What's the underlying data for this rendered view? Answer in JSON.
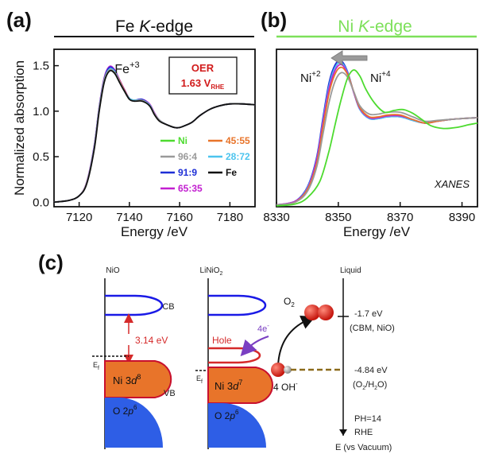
{
  "panels": {
    "a": {
      "label": "(a)",
      "title_pre": "Fe ",
      "title_k": "K",
      "title_post": "-edge",
      "peak_label": "Fe",
      "peak_sup": "+3",
      "box_line1": "OER",
      "box_line2": "1.63 V",
      "box_sub": "RHE"
    },
    "b": {
      "label": "(b)",
      "title_pre": "Ni ",
      "title_k": "K",
      "title_post": "-edge",
      "ann_left": "Ni",
      "ann_left_sup": "+2",
      "ann_right": "Ni",
      "ann_right_sup": "+4",
      "corner": "XANES"
    },
    "c": {
      "label": "(c)"
    }
  },
  "chart_data": [
    {
      "type": "line",
      "title": "Fe K-edge",
      "xlabel": "Energy /eV",
      "ylabel": "Normalized absorption",
      "xlim": [
        7110,
        7190
      ],
      "ylim": [
        -0.05,
        1.68
      ],
      "xticks": [
        7120,
        7140,
        7160,
        7180
      ],
      "yticks": [
        0.0,
        0.5,
        1.0,
        1.5
      ],
      "legend": [
        {
          "name": "Ni",
          "color": "#4ddb2f"
        },
        {
          "name": "45:55",
          "color": "#e8742a"
        },
        {
          "name": "96:4",
          "color": "#9a9a9a"
        },
        {
          "name": "28:72",
          "color": "#4cc4ee"
        },
        {
          "name": "91:9",
          "color": "#1e2fd6"
        },
        {
          "name": "Fe",
          "color": "#111111"
        },
        {
          "name": "65:35",
          "color": "#c21fd0"
        }
      ],
      "series": [
        {
          "name": "65:35",
          "color": "#c21fd0",
          "x": [
            7110,
            7116,
            7120,
            7123,
            7126,
            7128,
            7130,
            7132,
            7134,
            7136,
            7138,
            7140,
            7142,
            7145,
            7148,
            7150,
            7152,
            7155,
            7158,
            7160,
            7162,
            7165,
            7168,
            7172,
            7176,
            7180,
            7185,
            7190
          ],
          "y": [
            0.0,
            0.02,
            0.07,
            0.22,
            0.62,
            1.05,
            1.37,
            1.49,
            1.46,
            1.35,
            1.24,
            1.14,
            1.12,
            1.13,
            1.08,
            0.98,
            0.9,
            0.85,
            0.82,
            0.82,
            0.84,
            0.88,
            0.95,
            1.02,
            1.06,
            1.08,
            1.08,
            1.07
          ]
        },
        {
          "name": "91:9",
          "color": "#1e2fd6",
          "x": [
            7110,
            7116,
            7120,
            7123,
            7126,
            7128,
            7130,
            7132,
            7134,
            7136,
            7138,
            7140,
            7142,
            7145,
            7148,
            7150,
            7152,
            7155,
            7158,
            7160,
            7162,
            7165,
            7168,
            7172,
            7176,
            7180,
            7185,
            7190
          ],
          "y": [
            0.0,
            0.02,
            0.07,
            0.21,
            0.61,
            1.04,
            1.36,
            1.48,
            1.45,
            1.34,
            1.23,
            1.14,
            1.12,
            1.13,
            1.07,
            0.97,
            0.9,
            0.85,
            0.82,
            0.82,
            0.84,
            0.88,
            0.95,
            1.02,
            1.06,
            1.08,
            1.08,
            1.07
          ]
        },
        {
          "name": "45:55",
          "color": "#e8742a",
          "x": [
            7110,
            7116,
            7120,
            7123,
            7126,
            7128,
            7130,
            7132,
            7134,
            7136,
            7138,
            7140,
            7142,
            7145,
            7148,
            7150,
            7152,
            7155,
            7158,
            7160,
            7162,
            7165,
            7168,
            7172,
            7176,
            7180,
            7185,
            7190
          ],
          "y": [
            0.0,
            0.02,
            0.07,
            0.21,
            0.6,
            1.03,
            1.35,
            1.46,
            1.44,
            1.34,
            1.23,
            1.14,
            1.12,
            1.12,
            1.07,
            0.97,
            0.9,
            0.85,
            0.82,
            0.82,
            0.84,
            0.88,
            0.95,
            1.02,
            1.06,
            1.08,
            1.08,
            1.07
          ]
        },
        {
          "name": "28:72",
          "color": "#4cc4ee",
          "x": [
            7110,
            7116,
            7120,
            7123,
            7126,
            7128,
            7130,
            7132,
            7134,
            7136,
            7138,
            7140,
            7142,
            7145,
            7148,
            7150,
            7152,
            7155,
            7158,
            7160,
            7162,
            7165,
            7168,
            7172,
            7176,
            7180,
            7185,
            7190
          ],
          "y": [
            0.0,
            0.02,
            0.07,
            0.21,
            0.6,
            1.03,
            1.34,
            1.46,
            1.44,
            1.33,
            1.22,
            1.14,
            1.12,
            1.12,
            1.07,
            0.97,
            0.9,
            0.85,
            0.82,
            0.82,
            0.84,
            0.88,
            0.95,
            1.02,
            1.06,
            1.08,
            1.08,
            1.07
          ]
        },
        {
          "name": "96:4",
          "color": "#9a9a9a",
          "x": [
            7110,
            7116,
            7120,
            7123,
            7126,
            7128,
            7130,
            7132,
            7134,
            7136,
            7138,
            7140,
            7142,
            7145,
            7148,
            7150,
            7152,
            7155,
            7158,
            7160,
            7162,
            7165,
            7168,
            7172,
            7176,
            7180,
            7185,
            7190
          ],
          "y": [
            0.0,
            0.02,
            0.07,
            0.21,
            0.59,
            1.02,
            1.33,
            1.45,
            1.43,
            1.33,
            1.22,
            1.13,
            1.11,
            1.12,
            1.06,
            0.97,
            0.9,
            0.85,
            0.82,
            0.82,
            0.84,
            0.88,
            0.95,
            1.02,
            1.06,
            1.08,
            1.08,
            1.07
          ]
        },
        {
          "name": "Fe",
          "color": "#111111",
          "x": [
            7110,
            7116,
            7120,
            7123,
            7126,
            7128,
            7130,
            7132,
            7134,
            7136,
            7138,
            7140,
            7142,
            7145,
            7148,
            7150,
            7152,
            7155,
            7158,
            7160,
            7162,
            7165,
            7168,
            7172,
            7176,
            7180,
            7185,
            7190
          ],
          "y": [
            0.0,
            0.02,
            0.07,
            0.2,
            0.58,
            1.0,
            1.32,
            1.44,
            1.42,
            1.32,
            1.22,
            1.13,
            1.11,
            1.11,
            1.06,
            0.96,
            0.89,
            0.85,
            0.82,
            0.82,
            0.84,
            0.88,
            0.95,
            1.02,
            1.06,
            1.08,
            1.08,
            1.07
          ]
        }
      ]
    },
    {
      "type": "line",
      "title": "Ni K-edge",
      "xlabel": "Energy /eV",
      "xlim": [
        8330,
        8395
      ],
      "ylim": [
        0.0,
        1.75
      ],
      "xticks": [
        8330,
        8350,
        8370,
        8390
      ],
      "series": [
        {
          "color": "#1e2fd6",
          "x": [
            8330,
            8336,
            8340,
            8343,
            8345,
            8347,
            8349,
            8351,
            8353,
            8355,
            8357,
            8360,
            8363,
            8366,
            8370,
            8374,
            8378,
            8382,
            8386,
            8390,
            8395
          ],
          "y": [
            0.02,
            0.06,
            0.22,
            0.55,
            0.98,
            1.38,
            1.58,
            1.62,
            1.5,
            1.27,
            1.08,
            0.98,
            0.98,
            1.0,
            1.0,
            0.96,
            0.93,
            0.95,
            0.97,
            0.98,
            0.99
          ]
        },
        {
          "color": "#4cc4ee",
          "x": [
            8330,
            8336,
            8340,
            8343,
            8345,
            8347,
            8349,
            8351,
            8353,
            8355,
            8357,
            8360,
            8363,
            8366,
            8370,
            8374,
            8378,
            8382,
            8386,
            8390,
            8395
          ],
          "y": [
            0.02,
            0.06,
            0.21,
            0.53,
            0.95,
            1.34,
            1.55,
            1.6,
            1.49,
            1.27,
            1.08,
            0.98,
            0.98,
            1.0,
            1.0,
            0.96,
            0.93,
            0.95,
            0.97,
            0.98,
            0.99
          ]
        },
        {
          "color": "#c21fd0",
          "x": [
            8330,
            8336,
            8340,
            8343,
            8345,
            8347,
            8349,
            8351,
            8353,
            8355,
            8357,
            8360,
            8363,
            8366,
            8370,
            8374,
            8378,
            8382,
            8386,
            8390,
            8395
          ],
          "y": [
            0.02,
            0.06,
            0.2,
            0.52,
            0.93,
            1.31,
            1.52,
            1.58,
            1.48,
            1.27,
            1.09,
            0.99,
            0.99,
            1.01,
            1.01,
            0.97,
            0.93,
            0.95,
            0.97,
            0.98,
            0.99
          ]
        },
        {
          "color": "#e8742a",
          "x": [
            8330,
            8336,
            8340,
            8343,
            8345,
            8347,
            8349,
            8351,
            8353,
            8355,
            8357,
            8360,
            8363,
            8366,
            8370,
            8374,
            8378,
            8382,
            8386,
            8390,
            8395
          ],
          "y": [
            0.02,
            0.05,
            0.19,
            0.48,
            0.88,
            1.26,
            1.48,
            1.55,
            1.47,
            1.28,
            1.1,
            1.0,
            1.0,
            1.02,
            1.02,
            0.97,
            0.93,
            0.95,
            0.97,
            0.98,
            0.99
          ]
        },
        {
          "color": "#9a9a9a",
          "x": [
            8330,
            8336,
            8340,
            8343,
            8345,
            8347,
            8349,
            8351,
            8353,
            8355,
            8357,
            8360,
            8363,
            8366,
            8370,
            8374,
            8378,
            8382,
            8386,
            8390,
            8395
          ],
          "y": [
            0.02,
            0.05,
            0.17,
            0.44,
            0.8,
            1.16,
            1.4,
            1.49,
            1.44,
            1.28,
            1.12,
            1.03,
            1.03,
            1.05,
            1.05,
            1.0,
            0.95,
            0.96,
            0.97,
            0.98,
            0.99
          ]
        },
        {
          "color": "#4ddb2f",
          "x": [
            8330,
            8336,
            8340,
            8344,
            8347,
            8349,
            8351,
            8353,
            8355,
            8357,
            8359,
            8362,
            8365,
            8368,
            8371,
            8374,
            8377,
            8380,
            8384,
            8388,
            8392,
            8395
          ],
          "y": [
            0.01,
            0.03,
            0.1,
            0.28,
            0.62,
            0.92,
            1.2,
            1.43,
            1.52,
            1.45,
            1.3,
            1.14,
            1.05,
            1.07,
            1.08,
            1.04,
            0.97,
            0.9,
            0.87,
            0.88,
            0.91,
            0.93
          ]
        }
      ]
    }
  ],
  "diagram": {
    "nio": {
      "header": "NiO",
      "cb": "CB",
      "gap": "3.14 eV",
      "ef": "E",
      "ef_sub": "f",
      "band_pre": "Ni 3",
      "band_d": "d",
      "band_sup": "8",
      "vb": "VB",
      "o_pre": "O 2",
      "o_p": "p",
      "o_sup": "6"
    },
    "lini": {
      "header": "LiNiO",
      "header_sub": "2",
      "hole": "Hole",
      "ef": "E",
      "ef_sub": "f",
      "band_pre": "Ni 3",
      "band_d": "d",
      "band_sup": "7",
      "o_pre": "O 2",
      "o_p": "p",
      "o_sup": "6"
    },
    "mid": {
      "electrons": "4e",
      "electrons_sup": "-",
      "o2": "O",
      "o2_sub": "2",
      "oh": "4 OH",
      "oh_sup": "-"
    },
    "liquid": {
      "header": "Liquid",
      "lvl1": "-1.7 eV",
      "lvl1_note": "(CBM, NiO)",
      "lvl2": "-4.84 eV",
      "lvl2_note": "(O",
      "lvl2_note_sub": "2",
      "lvl2_note_mid": "/H",
      "lvl2_note_sub2": "2",
      "lvl2_note_end": "O)",
      "ph": "PH=14",
      "rhe": "RHE",
      "vac": "E (vs  Vacuum)"
    }
  }
}
